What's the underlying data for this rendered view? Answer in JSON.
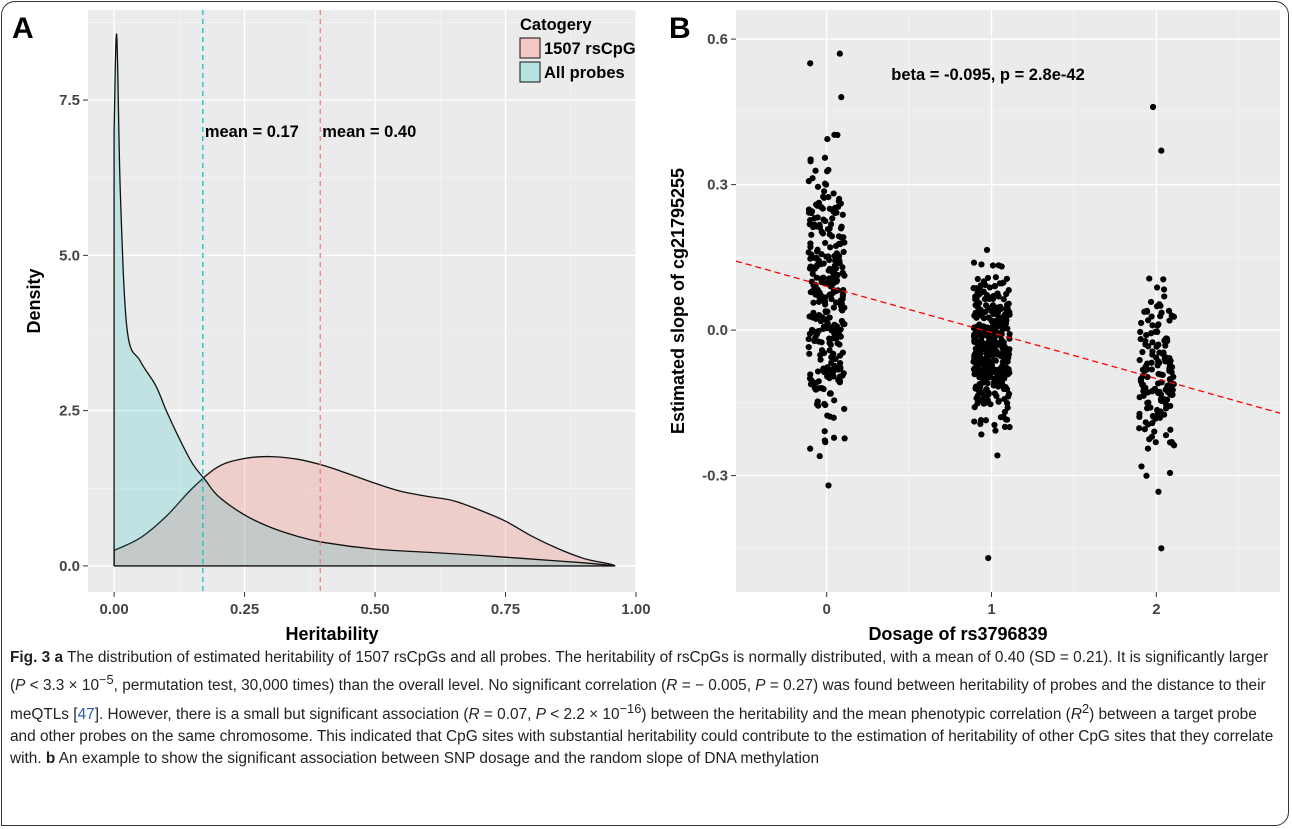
{
  "figure": {
    "panel_a_letter": "A",
    "panel_b_letter": "B"
  },
  "chart_data": [
    {
      "type": "area",
      "panel": "A",
      "xlabel": "Heritability",
      "ylabel": "Density",
      "xlim": [
        -0.05,
        1.0
      ],
      "ylim": [
        -0.42,
        8.95
      ],
      "x_ticks": [
        0.0,
        0.25,
        0.5,
        0.75,
        1.0
      ],
      "x_tick_labels": [
        "0.00",
        "0.25",
        "0.50",
        "0.75",
        "1.00"
      ],
      "y_ticks": [
        0.0,
        2.5,
        5.0,
        7.5
      ],
      "y_tick_labels": [
        "0.0",
        "2.5",
        "5.0",
        "7.5"
      ],
      "grid": true,
      "legend": {
        "title": "Catogery",
        "position": "top-right",
        "entries": [
          {
            "name": "1507 rsCpG",
            "fill": "#f4c7c5"
          },
          {
            "name": "All probes",
            "fill": "#b5e3e2"
          }
        ]
      },
      "series": [
        {
          "name": "1507 rsCpG",
          "color": "#f8766d",
          "x": [
            0.0,
            0.05,
            0.1,
            0.15,
            0.2,
            0.25,
            0.3,
            0.35,
            0.4,
            0.45,
            0.5,
            0.55,
            0.6,
            0.65,
            0.7,
            0.75,
            0.8,
            0.85,
            0.9,
            0.95,
            0.96
          ],
          "y": [
            0.25,
            0.45,
            0.8,
            1.25,
            1.6,
            1.73,
            1.76,
            1.72,
            1.62,
            1.48,
            1.33,
            1.2,
            1.12,
            1.05,
            0.9,
            0.72,
            0.48,
            0.28,
            0.12,
            0.03,
            0.0
          ]
        },
        {
          "name": "All probes",
          "color": "#00bfc4",
          "x": [
            0.0,
            0.005,
            0.012,
            0.025,
            0.05,
            0.08,
            0.1,
            0.125,
            0.15,
            0.175,
            0.2,
            0.25,
            0.3,
            0.35,
            0.4,
            0.5,
            0.6,
            0.7,
            0.8,
            0.9,
            0.96
          ],
          "y": [
            7.0,
            8.55,
            6.0,
            3.8,
            3.3,
            2.9,
            2.5,
            2.05,
            1.65,
            1.38,
            1.12,
            0.82,
            0.62,
            0.48,
            0.38,
            0.27,
            0.22,
            0.17,
            0.11,
            0.05,
            0.0
          ]
        }
      ],
      "annotations": [
        {
          "text": "mean = 0.17",
          "x": 0.17,
          "y": 7.0,
          "line_color": "#00bfc4"
        },
        {
          "text": "mean = 0.40",
          "x": 0.395,
          "y": 7.0,
          "line_color": "#f8766d"
        }
      ]
    },
    {
      "type": "scatter",
      "panel": "B",
      "xlabel": "Dosage of rs3796839",
      "ylabel": "Estimated slope of cg21795255",
      "xlim": [
        -0.55,
        2.75
      ],
      "ylim": [
        -0.54,
        0.66
      ],
      "x_ticks": [
        0,
        1,
        2
      ],
      "x_tick_labels": [
        "0",
        "1",
        "2"
      ],
      "y_ticks": [
        -0.3,
        0.0,
        0.3,
        0.6
      ],
      "y_tick_labels": [
        "-0.3",
        "0.0",
        "0.3",
        "0.6"
      ],
      "grid": true,
      "annotation": "beta = -0.095, p = 2.8e-42",
      "groups": [
        {
          "x": 0,
          "n": 300,
          "center": 0.07,
          "spread": 0.17
        },
        {
          "x": 1,
          "n": 380,
          "center": -0.04,
          "spread": 0.09
        },
        {
          "x": 2,
          "n": 160,
          "center": -0.09,
          "spread": 0.1
        }
      ],
      "outliers": [
        {
          "x": 0.98,
          "y": -0.47
        },
        {
          "x": 2.03,
          "y": -0.45
        },
        {
          "x": 2.03,
          "y": 0.37
        },
        {
          "x": 1.98,
          "y": 0.46
        },
        {
          "x": -0.1,
          "y": 0.55
        },
        {
          "x": 0.08,
          "y": 0.57
        }
      ],
      "fit_line": {
        "intercept": 0.09,
        "slope": -0.095,
        "color": "#ff0000",
        "style": "dashed"
      }
    }
  ],
  "caption": {
    "a_label": "Fig. 3 a",
    "a_part1": " The distribution of estimated heritability of 1507 rsCpGs and all probes. The heritability of rsCpGs is normally distributed, with a mean of 0.40 (SD = 0.21). It is significantly larger (",
    "a_p1": "P",
    "a_part2": " < 3.3 × 10",
    "a_exp1": "−5",
    "a_part3": ", permutation test, 30,000 times) than the overall level. No significant correlation (",
    "a_r1": "R",
    "a_part4": " = − 0.005, ",
    "a_p2": "P",
    "a_part5": " = 0.27) was found between heritability of probes and the distance to their meQTLs [",
    "a_ref": "47",
    "a_part6": "]. However, there is a small but significant association (",
    "a_r2": "R",
    "a_part7": " = 0.07, ",
    "a_p3": "P",
    "a_part8": " < 2.2 × 10",
    "a_exp2": "−16",
    "a_part9": ") between the heritability and the mean phenotypic correlation (",
    "a_r3": "R",
    "a_exp3": "2",
    "a_part10": ") between a target probe and other probes on the same chromosome. This indicated that CpG sites with substantial heritability could contribute to the estimation of heritability of other CpG sites that they correlate with. ",
    "b_label": "b",
    "b_text": " An example to show the significant association between SNP dosage and the random slope of DNA methylation"
  }
}
